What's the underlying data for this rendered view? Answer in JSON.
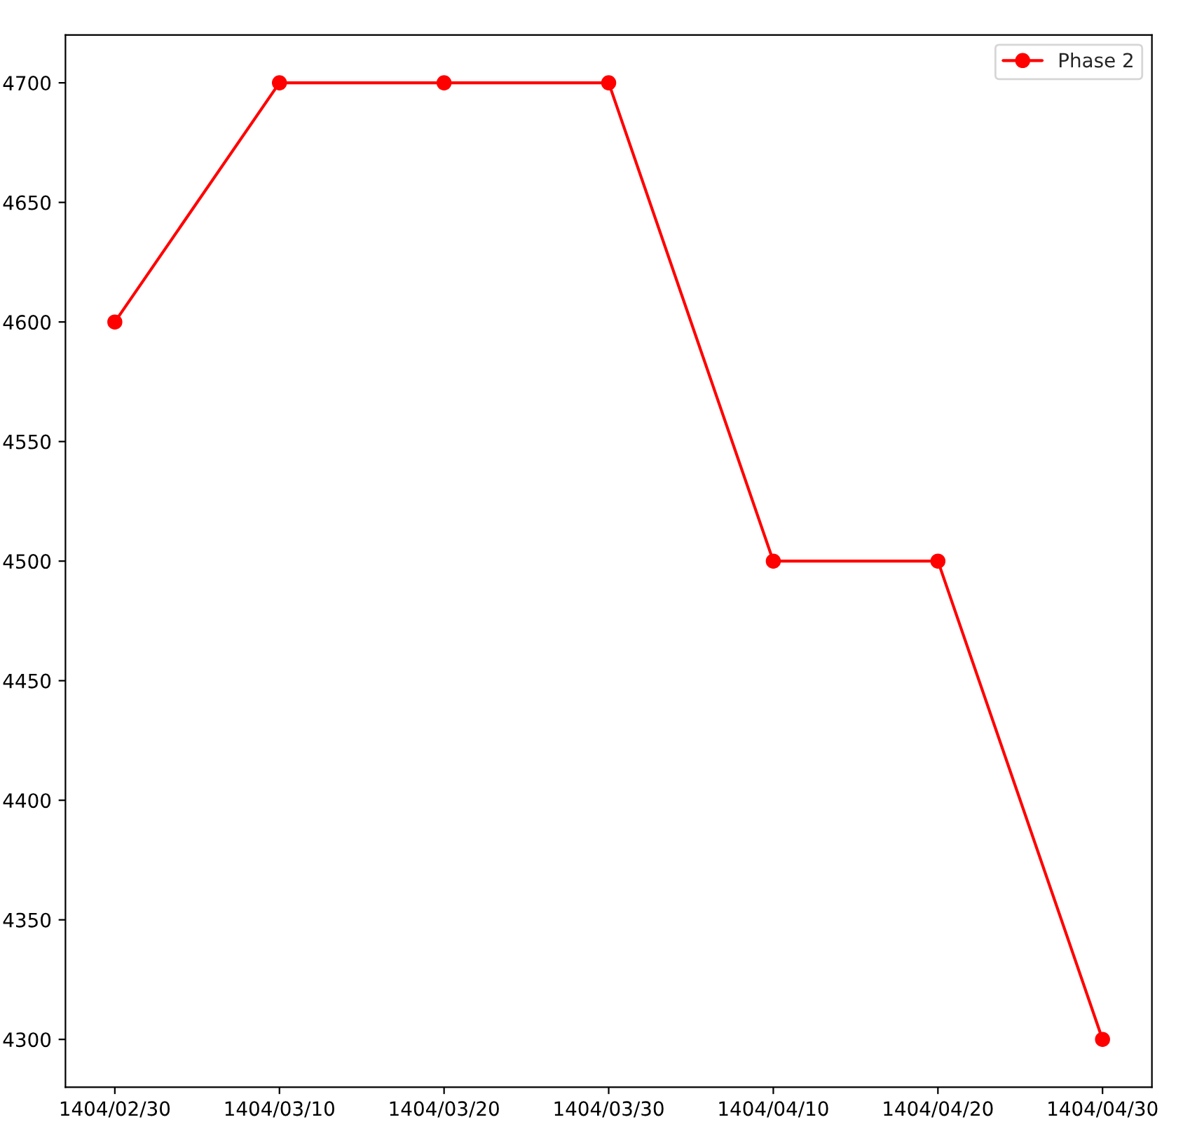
{
  "chart_data": {
    "type": "line",
    "categories": [
      "1404/02/30",
      "1404/03/10",
      "1404/03/20",
      "1404/03/30",
      "1404/04/10",
      "1404/04/20",
      "1404/04/30"
    ],
    "series": [
      {
        "name": "Phase 2",
        "color": "#ff0000",
        "values": [
          4600,
          4700,
          4700,
          4700,
          4500,
          4500,
          4300
        ]
      }
    ],
    "ylim": [
      4280,
      4720
    ],
    "yticks": [
      4300,
      4350,
      4400,
      4450,
      4500,
      4550,
      4600,
      4650,
      4700
    ],
    "marker": "circle",
    "line_style": "solid",
    "legend": "top right",
    "grid": false
  }
}
